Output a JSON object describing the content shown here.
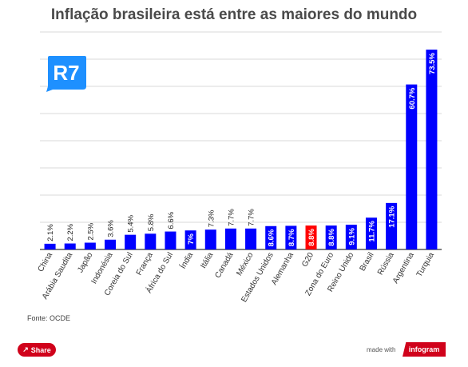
{
  "header": {
    "title": "Inflação brasileira está entre as maiores do mundo"
  },
  "logo": {
    "text": "R7",
    "color": "#1e90ff"
  },
  "colors": {
    "bar": "#0000ff",
    "highlight": "#ff0000",
    "grid": "#d9d9d9",
    "axis": "#333333"
  },
  "chart_data": {
    "type": "bar",
    "title": "Inflação brasileira está entre as maiores do mundo",
    "xlabel": "",
    "ylabel": "",
    "ylim": [
      0,
      80
    ],
    "grid": true,
    "categories": [
      "China",
      "Arábia Saudita",
      "Japão",
      "Indonésia",
      "Coreia do Sul",
      "França",
      "África do Sul",
      "Índia",
      "Itália",
      "Canadá",
      "México",
      "Estados Unidos",
      "Alemanha",
      "G20",
      "Zona do Euro",
      "Reino Unido",
      "Brasil",
      "Rússia",
      "Argentina",
      "Turquia"
    ],
    "values": [
      2.1,
      2.2,
      2.5,
      3.6,
      5.4,
      5.8,
      6.6,
      7,
      7.3,
      7.7,
      7.7,
      8.6,
      8.7,
      8.8,
      8.8,
      9.1,
      11.7,
      17.1,
      60.7,
      73.5
    ],
    "labels": [
      "2.1%",
      "2.2%",
      "2.5%",
      "3.6%",
      "5.4%",
      "5.8%",
      "6.6%",
      "7%",
      "7.3%",
      "7.7%",
      "7.7%",
      "8.6%",
      "8.7%",
      "8.8%",
      "8.8%",
      "9.1%",
      "11.7%",
      "17.1%",
      "60.7%",
      "73.5%"
    ],
    "highlight_category": "G20"
  },
  "footer": {
    "source": "Fonte: OCDE",
    "share_label": "Share",
    "made_with": "made with",
    "brand": "infogram"
  }
}
